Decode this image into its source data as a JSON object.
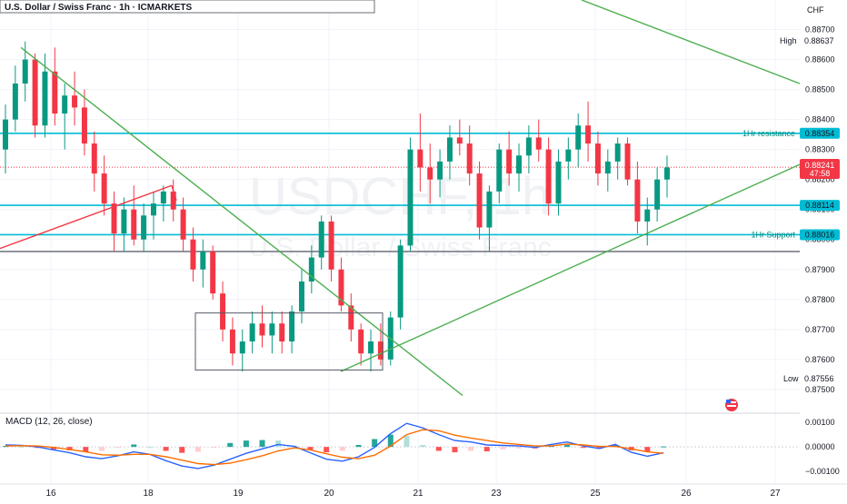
{
  "header": {
    "symbol_title": "U.S. Dollar / Swiss Franc · 1h · ICMARKETS"
  },
  "watermark": {
    "symbol": "USDCHF, 1h",
    "description": "U.S. Dollar / Swiss Franc"
  },
  "price_axis": {
    "currency": "CHF",
    "ticks": [
      "0.88700",
      "0.88600",
      "0.88500",
      "0.88400",
      "0.88300",
      "0.88200",
      "0.88100",
      "0.88000",
      "0.87900",
      "0.87800",
      "0.87700",
      "0.87600",
      "0.87500"
    ],
    "high_label": "High",
    "high_value": "0.88637",
    "low_label": "Low",
    "low_value": "0.87556",
    "current_price": "0.88241",
    "countdown": "47:58",
    "level_labels": [
      {
        "name": "1Hr resistance",
        "value": "0.88354",
        "price": 0.88354
      },
      {
        "name": "",
        "value": "0.88114",
        "price": 0.88114
      },
      {
        "name": "1Hr Support",
        "value": "0.88016",
        "price": 0.88016
      }
    ]
  },
  "time_axis": {
    "labels": [
      "16",
      "18",
      "19",
      "20",
      "21",
      "23",
      "25",
      "26",
      "27"
    ]
  },
  "macd": {
    "title": "MACD (12, 26, close)",
    "ticks": [
      "0.00100",
      "0.00000",
      "−0.00100"
    ]
  },
  "colors": {
    "bull": "#089981",
    "bear": "#f23645",
    "level_line": "#00bcd4",
    "trend_green": "#4caf50",
    "trend_red": "#f23645",
    "macd_line": "#2962ff",
    "signal_line": "#ff6d00",
    "hist_pos_strong": "#26a69a",
    "hist_pos_weak": "#b2dfdb",
    "hist_neg_strong": "#ff5252",
    "hist_neg_weak": "#ffcdd2"
  },
  "chart_data": [
    {
      "type": "candlestick",
      "title": "U.S. Dollar / Swiss Franc · 1h · ICMARKETS",
      "timeframe": "1h",
      "xlabel": "",
      "ylabel": "",
      "ylim": [
        0.8743,
        0.8875
      ],
      "x_ticks": [
        "16",
        "18",
        "19",
        "20",
        "21",
        "23",
        "25",
        "26",
        "27"
      ],
      "grid": true,
      "high": 0.88637,
      "low": 0.87556,
      "last": 0.88241,
      "horizontal_levels": [
        {
          "label": "1Hr resistance",
          "price": 0.88354
        },
        {
          "label": "",
          "price": 0.88114
        },
        {
          "label": "1Hr Support",
          "price": 0.88016
        },
        {
          "label": "",
          "price": 0.8796
        }
      ],
      "trendlines": [
        {
          "color": "green",
          "from": [
            "15.6",
            0.8864
          ],
          "to": [
            "21.3",
            0.8748
          ]
        },
        {
          "color": "green",
          "from": [
            "20.1",
            0.8756
          ],
          "to": [
            "27.3",
            0.8825
          ]
        },
        {
          "color": "green",
          "from": [
            "24.9",
            0.8878
          ],
          "to": [
            "27.3",
            0.8852
          ]
        },
        {
          "color": "red",
          "from": [
            "15.3",
            0.8797
          ],
          "to": [
            "18.3",
            0.8818
          ]
        }
      ],
      "ohlc": [
        [
          0.883,
          0.8845,
          0.8822,
          0.884
        ],
        [
          0.884,
          0.8858,
          0.8836,
          0.8852
        ],
        [
          0.8852,
          0.8866,
          0.8846,
          0.886
        ],
        [
          0.886,
          0.8862,
          0.8834,
          0.8838
        ],
        [
          0.8838,
          0.8862,
          0.8834,
          0.8856
        ],
        [
          0.8856,
          0.8864,
          0.8838,
          0.8842
        ],
        [
          0.8842,
          0.8852,
          0.883,
          0.8848
        ],
        [
          0.8848,
          0.8856,
          0.8838,
          0.8844
        ],
        [
          0.8844,
          0.885,
          0.8828,
          0.8832
        ],
        [
          0.8832,
          0.8836,
          0.8816,
          0.8822
        ],
        [
          0.8822,
          0.8828,
          0.8808,
          0.8812
        ],
        [
          0.8812,
          0.8816,
          0.8796,
          0.8802
        ],
        [
          0.8802,
          0.8814,
          0.8796,
          0.881
        ],
        [
          0.881,
          0.8818,
          0.8798,
          0.88
        ],
        [
          0.88,
          0.8812,
          0.8796,
          0.8808
        ],
        [
          0.8808,
          0.8816,
          0.88,
          0.8812
        ],
        [
          0.8812,
          0.8818,
          0.8806,
          0.8816
        ],
        [
          0.8816,
          0.882,
          0.8806,
          0.881
        ],
        [
          0.881,
          0.8814,
          0.8796,
          0.88
        ],
        [
          0.88,
          0.8804,
          0.8786,
          0.879
        ],
        [
          0.879,
          0.88,
          0.8784,
          0.8796
        ],
        [
          0.8796,
          0.8798,
          0.878,
          0.8782
        ],
        [
          0.8782,
          0.8786,
          0.8766,
          0.877
        ],
        [
          0.877,
          0.8774,
          0.8758,
          0.8762
        ],
        [
          0.8762,
          0.877,
          0.8756,
          0.8766
        ],
        [
          0.8766,
          0.8776,
          0.8762,
          0.8772
        ],
        [
          0.8772,
          0.8778,
          0.8764,
          0.8768
        ],
        [
          0.8768,
          0.8776,
          0.8762,
          0.8772
        ],
        [
          0.8772,
          0.8776,
          0.8762,
          0.8766
        ],
        [
          0.8766,
          0.8778,
          0.8762,
          0.8776
        ],
        [
          0.8776,
          0.879,
          0.8772,
          0.8786
        ],
        [
          0.8786,
          0.8798,
          0.8782,
          0.8794
        ],
        [
          0.8794,
          0.8808,
          0.879,
          0.8806
        ],
        [
          0.8806,
          0.8808,
          0.8786,
          0.879
        ],
        [
          0.879,
          0.8794,
          0.8776,
          0.8778
        ],
        [
          0.8778,
          0.8782,
          0.8766,
          0.877
        ],
        [
          0.877,
          0.8772,
          0.8758,
          0.8762
        ],
        [
          0.8762,
          0.877,
          0.8756,
          0.8766
        ],
        [
          0.8766,
          0.8772,
          0.8758,
          0.876
        ],
        [
          0.876,
          0.8776,
          0.8758,
          0.8774
        ],
        [
          0.8774,
          0.88,
          0.877,
          0.8798
        ],
        [
          0.8798,
          0.8834,
          0.8796,
          0.883
        ],
        [
          0.883,
          0.8842,
          0.8816,
          0.8824
        ],
        [
          0.8824,
          0.8832,
          0.8812,
          0.882
        ],
        [
          0.882,
          0.883,
          0.8814,
          0.8826
        ],
        [
          0.8826,
          0.8838,
          0.882,
          0.8834
        ],
        [
          0.8834,
          0.884,
          0.8828,
          0.8832
        ],
        [
          0.8832,
          0.8838,
          0.8818,
          0.8822
        ],
        [
          0.8822,
          0.8826,
          0.88,
          0.8804
        ],
        [
          0.8804,
          0.8818,
          0.8796,
          0.8816
        ],
        [
          0.8816,
          0.8832,
          0.8812,
          0.883
        ],
        [
          0.883,
          0.8836,
          0.8818,
          0.8822
        ],
        [
          0.8822,
          0.8832,
          0.8816,
          0.8828
        ],
        [
          0.8828,
          0.8838,
          0.8822,
          0.8834
        ],
        [
          0.8834,
          0.884,
          0.8826,
          0.883
        ],
        [
          0.883,
          0.8834,
          0.8808,
          0.8812
        ],
        [
          0.8812,
          0.883,
          0.8808,
          0.8826
        ],
        [
          0.8826,
          0.8834,
          0.882,
          0.883
        ],
        [
          0.883,
          0.8842,
          0.8824,
          0.8838
        ],
        [
          0.8838,
          0.8846,
          0.8826,
          0.8832
        ],
        [
          0.8832,
          0.8836,
          0.8818,
          0.8822
        ],
        [
          0.8822,
          0.883,
          0.8816,
          0.8826
        ],
        [
          0.8826,
          0.8834,
          0.882,
          0.8832
        ],
        [
          0.8832,
          0.8834,
          0.8818,
          0.882
        ],
        [
          0.882,
          0.8826,
          0.8802,
          0.8806
        ],
        [
          0.8806,
          0.8814,
          0.8798,
          0.881
        ],
        [
          0.881,
          0.8824,
          0.8806,
          0.882
        ],
        [
          0.882,
          0.8828,
          0.8814,
          0.8824
        ]
      ]
    },
    {
      "type": "line",
      "title": "MACD (12, 26, close)",
      "ylim": [
        -0.0014,
        0.0013
      ],
      "y_ticks": [
        0.001,
        0.0,
        -0.001
      ],
      "series": [
        {
          "name": "",
          "color": "blue",
          "values": [
            8e-05,
            6e-05,
            0.0,
            -0.00012,
            -0.00024,
            -0.0004,
            -0.00048,
            -0.00036,
            -0.0002,
            -0.0003,
            -0.00056,
            -0.00078,
            -0.00088,
            -0.00074,
            -0.0005,
            -0.00026,
            -8e-05,
            0.0001,
            2e-05,
            -0.00024,
            -0.0005,
            -0.00058,
            -0.0004,
            -2e-05,
            0.00054,
            0.00096,
            0.00078,
            0.0005,
            0.00026,
            0.0002,
            8e-05,
            6e-05,
            4e-05,
            -2e-05,
            0.0001,
            0.0002,
            4e-05,
            -6e-05,
            0.0001,
            -0.00022,
            -0.00038,
            -0.00024
          ]
        },
        {
          "name": "",
          "color": "orange",
          "values": [
            4e-05,
            5e-05,
            4e-05,
            -2e-05,
            -0.0001,
            -0.0002,
            -0.00032,
            -0.00034,
            -0.0003,
            -0.0003,
            -0.0004,
            -0.00054,
            -0.00068,
            -0.00072,
            -0.00066,
            -0.00052,
            -0.00036,
            -0.00016,
            -4e-05,
            -0.00012,
            -0.00028,
            -0.00042,
            -0.00048,
            -0.00034,
            4e-05,
            0.0005,
            0.0007,
            0.00066,
            0.00048,
            0.00036,
            0.00026,
            0.00016,
            0.0001,
            4e-05,
            4e-05,
            0.00012,
            8e-05,
            2e-05,
            2e-05,
            -8e-05,
            -0.0002,
            -0.00026
          ]
        }
      ]
    }
  ]
}
